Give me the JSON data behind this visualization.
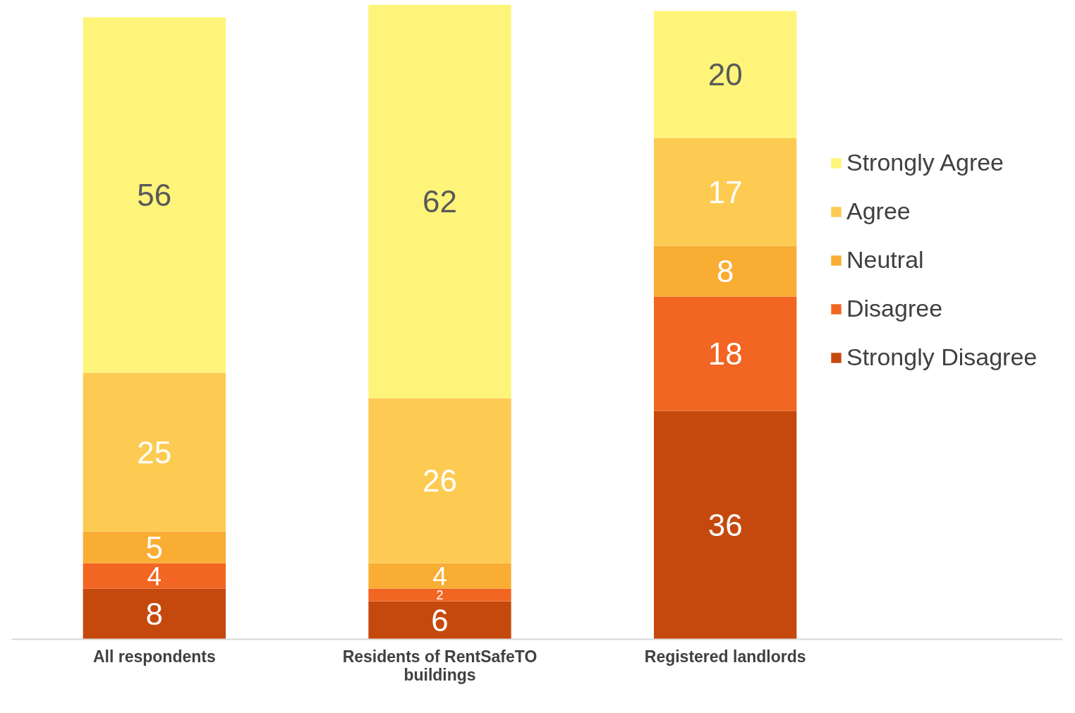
{
  "chart_data": {
    "type": "bar",
    "stacked": true,
    "data_labels": true,
    "legend": "right",
    "grid": false,
    "tick_labels": "x",
    "ylim": [
      0,
      100
    ],
    "categories": [
      "All respondents",
      "Residents of RentSafeTO buildings",
      "Registered landlords"
    ],
    "series": [
      {
        "name": "Strongly Disagree",
        "color": "#c5490c",
        "values": [
          8,
          6,
          36
        ]
      },
      {
        "name": "Disagree",
        "color": "#f26522",
        "values": [
          4,
          2,
          18
        ]
      },
      {
        "name": "Neutral",
        "color": "#f9ad33",
        "values": [
          5,
          4,
          8
        ]
      },
      {
        "name": "Agree",
        "color": "#fdcb52",
        "values": [
          25,
          26,
          17
        ]
      },
      {
        "name": "Strongly Agree",
        "color": "#fff47a",
        "values": [
          56,
          62,
          20
        ]
      }
    ]
  }
}
